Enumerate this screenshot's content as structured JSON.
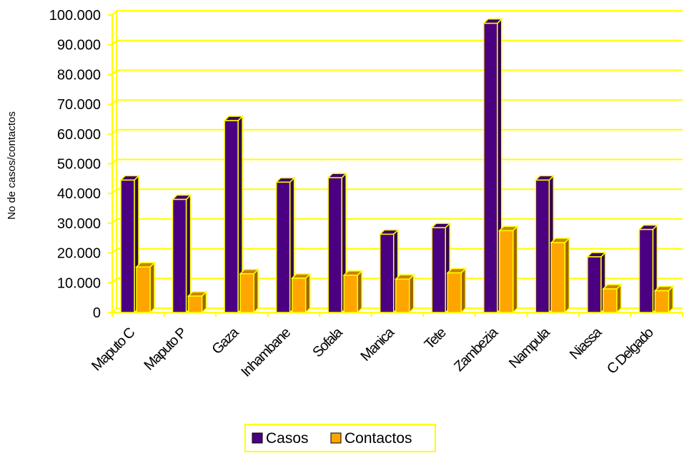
{
  "chart_data": {
    "type": "bar",
    "ylabel": "No de casos/contactos",
    "ylim": [
      0,
      100000
    ],
    "ytick_labels": [
      "0",
      "10.000",
      "20.000",
      "30.000",
      "40.000",
      "50.000",
      "60.000",
      "70.000",
      "80.000",
      "90.000",
      "100.000"
    ],
    "categories": [
      "Maputo C",
      "Maputo P",
      "Gaza",
      "Inhambane",
      "Sofala",
      "Manica",
      "Tete",
      "Zambezia",
      "Nampula",
      "Niassa",
      "C Delgado"
    ],
    "series": [
      {
        "name": "Casos",
        "color": "#4B0082",
        "values": [
          44500,
          38000,
          64500,
          43800,
          45300,
          26300,
          28500,
          97200,
          44500,
          18700,
          27900
        ]
      },
      {
        "name": "Contactos",
        "color": "#FFA500",
        "values": [
          15300,
          5500,
          13000,
          11500,
          12500,
          11200,
          13300,
          27500,
          23500,
          7900,
          7300
        ]
      }
    ],
    "grid": true,
    "gridline_color": "#FFFF00",
    "bar_outline_color": "#FFFF00",
    "legend_position": "bottom"
  }
}
